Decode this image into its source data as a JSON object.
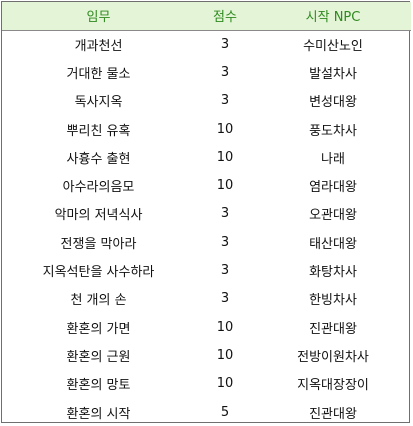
{
  "headers": [
    "임무",
    "점수",
    "시작 NPC"
  ],
  "rows": [
    [
      "개과천선",
      "3",
      "수미산노인"
    ],
    [
      "거대한 물소",
      "3",
      "발설차사"
    ],
    [
      "독사지옥",
      "3",
      "변성대왕"
    ],
    [
      "뿌리친 유혹",
      "10",
      "풍도차사"
    ],
    [
      "사흉수 출현",
      "10",
      "나래"
    ],
    [
      "아수라의음모",
      "10",
      "염라대왕"
    ],
    [
      "악마의 저녁식사",
      "3",
      "오관대왕"
    ],
    [
      "전쟁을 막아라",
      "3",
      "태산대왕"
    ],
    [
      "지옥석탄을 사수하라",
      "3",
      "화탕차사"
    ],
    [
      "천 개의 손",
      "3",
      "한빙차사"
    ],
    [
      "환혼의 가면",
      "10",
      "진관대왕"
    ],
    [
      "환혼의 근원",
      "10",
      "전방이원차사"
    ],
    [
      "환혼의 망토",
      "10",
      "지옥대장장이"
    ],
    [
      "환혼의 시작",
      "5",
      "진관대왕"
    ]
  ],
  "colors": {
    "header_bg": "#e3f4d7",
    "header_text": "#2f8a1f",
    "border": "#6f6f6f"
  }
}
